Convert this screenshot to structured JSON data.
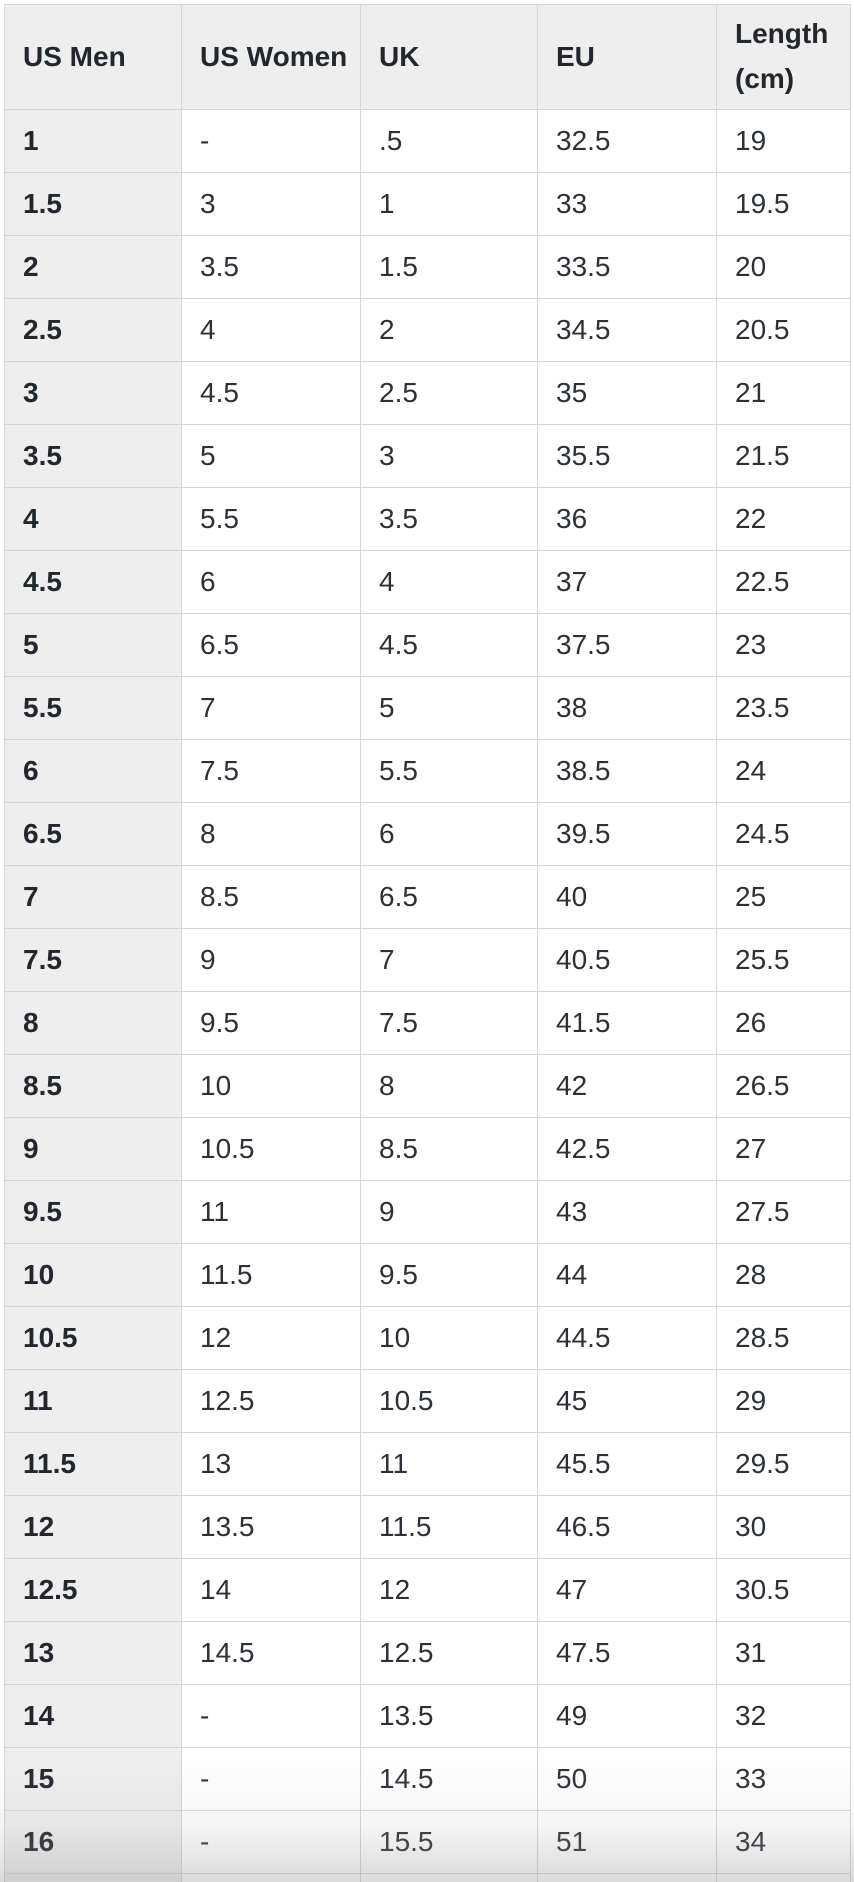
{
  "colors": {
    "header_bg": "#eeeeee",
    "cell_bg": "#ffffff",
    "border": "#d6d6d6",
    "text": "#2c3137",
    "strong_text": "#22262e"
  },
  "chart_data": {
    "type": "table",
    "columns": [
      "US Men",
      "US Women",
      "UK",
      "EU",
      "Length (cm)"
    ],
    "rows": [
      [
        "1",
        "-",
        ".5",
        "32.5",
        "19"
      ],
      [
        "1.5",
        "3",
        "1",
        "33",
        "19.5"
      ],
      [
        "2",
        "3.5",
        "1.5",
        "33.5",
        "20"
      ],
      [
        "2.5",
        "4",
        "2",
        "34.5",
        "20.5"
      ],
      [
        "3",
        "4.5",
        "2.5",
        "35",
        "21"
      ],
      [
        "3.5",
        "5",
        "3",
        "35.5",
        "21.5"
      ],
      [
        "4",
        "5.5",
        "3.5",
        "36",
        "22"
      ],
      [
        "4.5",
        "6",
        "4",
        "37",
        "22.5"
      ],
      [
        "5",
        "6.5",
        "4.5",
        "37.5",
        "23"
      ],
      [
        "5.5",
        "7",
        "5",
        "38",
        "23.5"
      ],
      [
        "6",
        "7.5",
        "5.5",
        "38.5",
        "24"
      ],
      [
        "6.5",
        "8",
        "6",
        "39.5",
        "24.5"
      ],
      [
        "7",
        "8.5",
        "6.5",
        "40",
        "25"
      ],
      [
        "7.5",
        "9",
        "7",
        "40.5",
        "25.5"
      ],
      [
        "8",
        "9.5",
        "7.5",
        "41.5",
        "26"
      ],
      [
        "8.5",
        "10",
        "8",
        "42",
        "26.5"
      ],
      [
        "9",
        "10.5",
        "8.5",
        "42.5",
        "27"
      ],
      [
        "9.5",
        "11",
        "9",
        "43",
        "27.5"
      ],
      [
        "10",
        "11.5",
        "9.5",
        "44",
        "28"
      ],
      [
        "10.5",
        "12",
        "10",
        "44.5",
        "28.5"
      ],
      [
        "11",
        "12.5",
        "10.5",
        "45",
        "29"
      ],
      [
        "11.5",
        "13",
        "11",
        "45.5",
        "29.5"
      ],
      [
        "12",
        "13.5",
        "11.5",
        "46.5",
        "30"
      ],
      [
        "12.5",
        "14",
        "12",
        "47",
        "30.5"
      ],
      [
        "13",
        "14.5",
        "12.5",
        "47.5",
        "31"
      ],
      [
        "14",
        "-",
        "13.5",
        "49",
        "32"
      ],
      [
        "15",
        "-",
        "14.5",
        "50",
        "33"
      ],
      [
        "16",
        "-",
        "15.5",
        "51",
        "34"
      ]
    ],
    "layout_hints": {
      "first_column_is_row_header": true,
      "grid": true,
      "partial_row_at_bottom": true,
      "bottom_fade_overlay": true
    }
  }
}
